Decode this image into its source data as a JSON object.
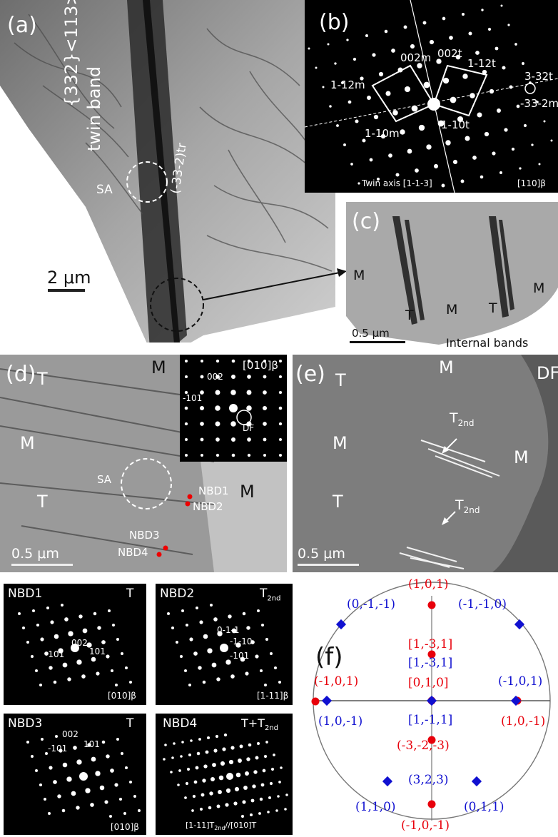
{
  "panel_a": {
    "label": "(a)",
    "twin_line1": "{332}<113>",
    "twin_line2": "twin band",
    "tr": "(-33-2)tr",
    "sa": "SA",
    "scale": "2 μm"
  },
  "panel_b": {
    "label": "(b)",
    "spots": [
      "002m",
      "002t",
      "1-12m",
      "1-12t",
      "3-32t",
      "-33-2m",
      "1-10m",
      "1-10t"
    ],
    "twin_axis": "Twin axis [1-1-3]",
    "zone": "[110]β"
  },
  "panel_c": {
    "label": "(c)",
    "m": "M",
    "t": "T",
    "scale": "0.5 μm",
    "caption": "Internal bands"
  },
  "panel_d": {
    "label": "(d)",
    "t": "T",
    "m": "M",
    "sa": "SA",
    "nbd1": "NBD1",
    "nbd2": "NBD2",
    "nbd3": "NBD3",
    "nbd4": "NBD4",
    "scale": "0.5 μm",
    "inset_zone": "[010]β",
    "inset_002": "002",
    "inset_m101": "-101",
    "inset_df": "DF"
  },
  "panel_e": {
    "label": "(e)",
    "df": "DF",
    "t": "T",
    "m": "M",
    "t2_main": "T",
    "t2_sub": "2nd",
    "scale": "0.5 μm"
  },
  "nbd1": {
    "title": "NBD1",
    "phase": "T",
    "s1": "002",
    "s2": "101",
    "s3": "-101",
    "zone": "[010]β"
  },
  "nbd2": {
    "title": "NBD2",
    "phase_main": "T",
    "phase_sub": "2nd",
    "s1": "0-1-1",
    "s2": "-1-10",
    "s3": "-101",
    "zone": "[1-11]β"
  },
  "nbd3": {
    "title": "NBD3",
    "phase": "T",
    "s1": "002",
    "s2": "101",
    "s3": "-101",
    "zone": "[010]β"
  },
  "nbd4": {
    "title": "NBD4",
    "phase_main": "T+T",
    "phase_sub": "2nd",
    "zone": "[1-11]T",
    "zone_sub": "2nd",
    "zone_tail": "//[010]T"
  },
  "panel_f": {
    "label": "(f)",
    "red": [
      "(1,0,1)",
      "[1,-3,1]",
      "[0,1,0]",
      "(-1,0,1)",
      "(1,0,-1)",
      "(-3,-2,-3)",
      "(-1,0,-1)"
    ],
    "blue": [
      "(0,-1,-1)",
      "(-1,-1,0)",
      "[1,-3,1]",
      "(-1,0,1)",
      "(1,0,-1)",
      "[1,-1,1]",
      "(3,2,3)",
      "(1,1,0)",
      "(0,1,1)"
    ],
    "red_color": "#e8000b",
    "blue_color": "#1010d0"
  }
}
